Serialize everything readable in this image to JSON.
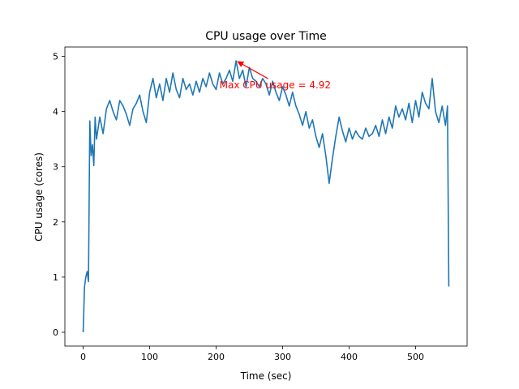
{
  "chart_data": {
    "type": "line",
    "title": "CPU usage over Time",
    "xlabel": "Time (sec)",
    "ylabel": "CPU usage (cores)",
    "xlim": [
      -27.5,
      577.5
    ],
    "ylim": [
      -0.25,
      5.17
    ],
    "xticks": [
      0,
      100,
      200,
      300,
      400,
      500
    ],
    "yticks": [
      0,
      1,
      2,
      3,
      4,
      5
    ],
    "grid": false,
    "series": [
      {
        "name": "CPU usage",
        "color": "#1f77b4",
        "x": [
          0,
          2,
          4,
          6,
          8,
          10,
          12,
          14,
          16,
          18,
          20,
          25,
          30,
          35,
          40,
          45,
          50,
          55,
          60,
          65,
          70,
          75,
          80,
          85,
          90,
          95,
          100,
          105,
          110,
          115,
          120,
          125,
          130,
          135,
          140,
          145,
          150,
          155,
          160,
          165,
          170,
          175,
          180,
          185,
          190,
          195,
          200,
          205,
          210,
          215,
          220,
          225,
          230,
          235,
          240,
          245,
          250,
          255,
          260,
          265,
          270,
          275,
          280,
          285,
          290,
          295,
          300,
          305,
          310,
          315,
          320,
          325,
          330,
          335,
          340,
          345,
          350,
          355,
          360,
          365,
          370,
          375,
          380,
          385,
          390,
          395,
          400,
          405,
          410,
          415,
          420,
          425,
          430,
          435,
          440,
          445,
          450,
          455,
          460,
          465,
          470,
          475,
          480,
          485,
          490,
          495,
          500,
          505,
          510,
          515,
          520,
          525,
          530,
          535,
          540,
          545,
          548,
          550
        ],
        "y": [
          0.0,
          0.82,
          1.0,
          1.1,
          0.92,
          3.83,
          3.2,
          3.4,
          3.02,
          3.9,
          3.5,
          3.9,
          3.6,
          4.05,
          4.2,
          4.0,
          3.85,
          4.2,
          4.1,
          3.95,
          3.75,
          4.05,
          4.15,
          4.3,
          4.0,
          3.8,
          4.35,
          4.6,
          4.25,
          4.5,
          4.2,
          4.6,
          4.35,
          4.7,
          4.4,
          4.25,
          4.6,
          4.4,
          4.5,
          4.3,
          4.55,
          4.35,
          4.6,
          4.45,
          4.7,
          4.5,
          4.4,
          4.7,
          4.5,
          4.6,
          4.75,
          4.55,
          4.92,
          4.6,
          4.75,
          4.45,
          4.8,
          4.6,
          4.55,
          4.45,
          4.6,
          4.5,
          4.3,
          4.55,
          4.35,
          4.2,
          4.45,
          4.3,
          4.1,
          4.35,
          4.1,
          3.95,
          3.75,
          4.0,
          3.7,
          3.85,
          3.55,
          3.35,
          3.6,
          3.2,
          2.7,
          3.15,
          3.55,
          3.9,
          3.65,
          3.45,
          3.7,
          3.5,
          3.65,
          3.55,
          3.5,
          3.7,
          3.55,
          3.6,
          3.75,
          3.55,
          3.85,
          3.6,
          3.9,
          3.7,
          4.1,
          3.9,
          4.05,
          3.85,
          4.15,
          3.8,
          4.2,
          3.9,
          4.35,
          4.15,
          4.05,
          4.6,
          4.0,
          3.8,
          4.1,
          3.75,
          4.1,
          0.83
        ]
      }
    ],
    "annotation": {
      "text": "Max CPU usage = 4.92",
      "point": [
        230,
        4.92
      ],
      "text_pos": [
        205,
        4.42
      ],
      "color": "#ff0000"
    }
  }
}
